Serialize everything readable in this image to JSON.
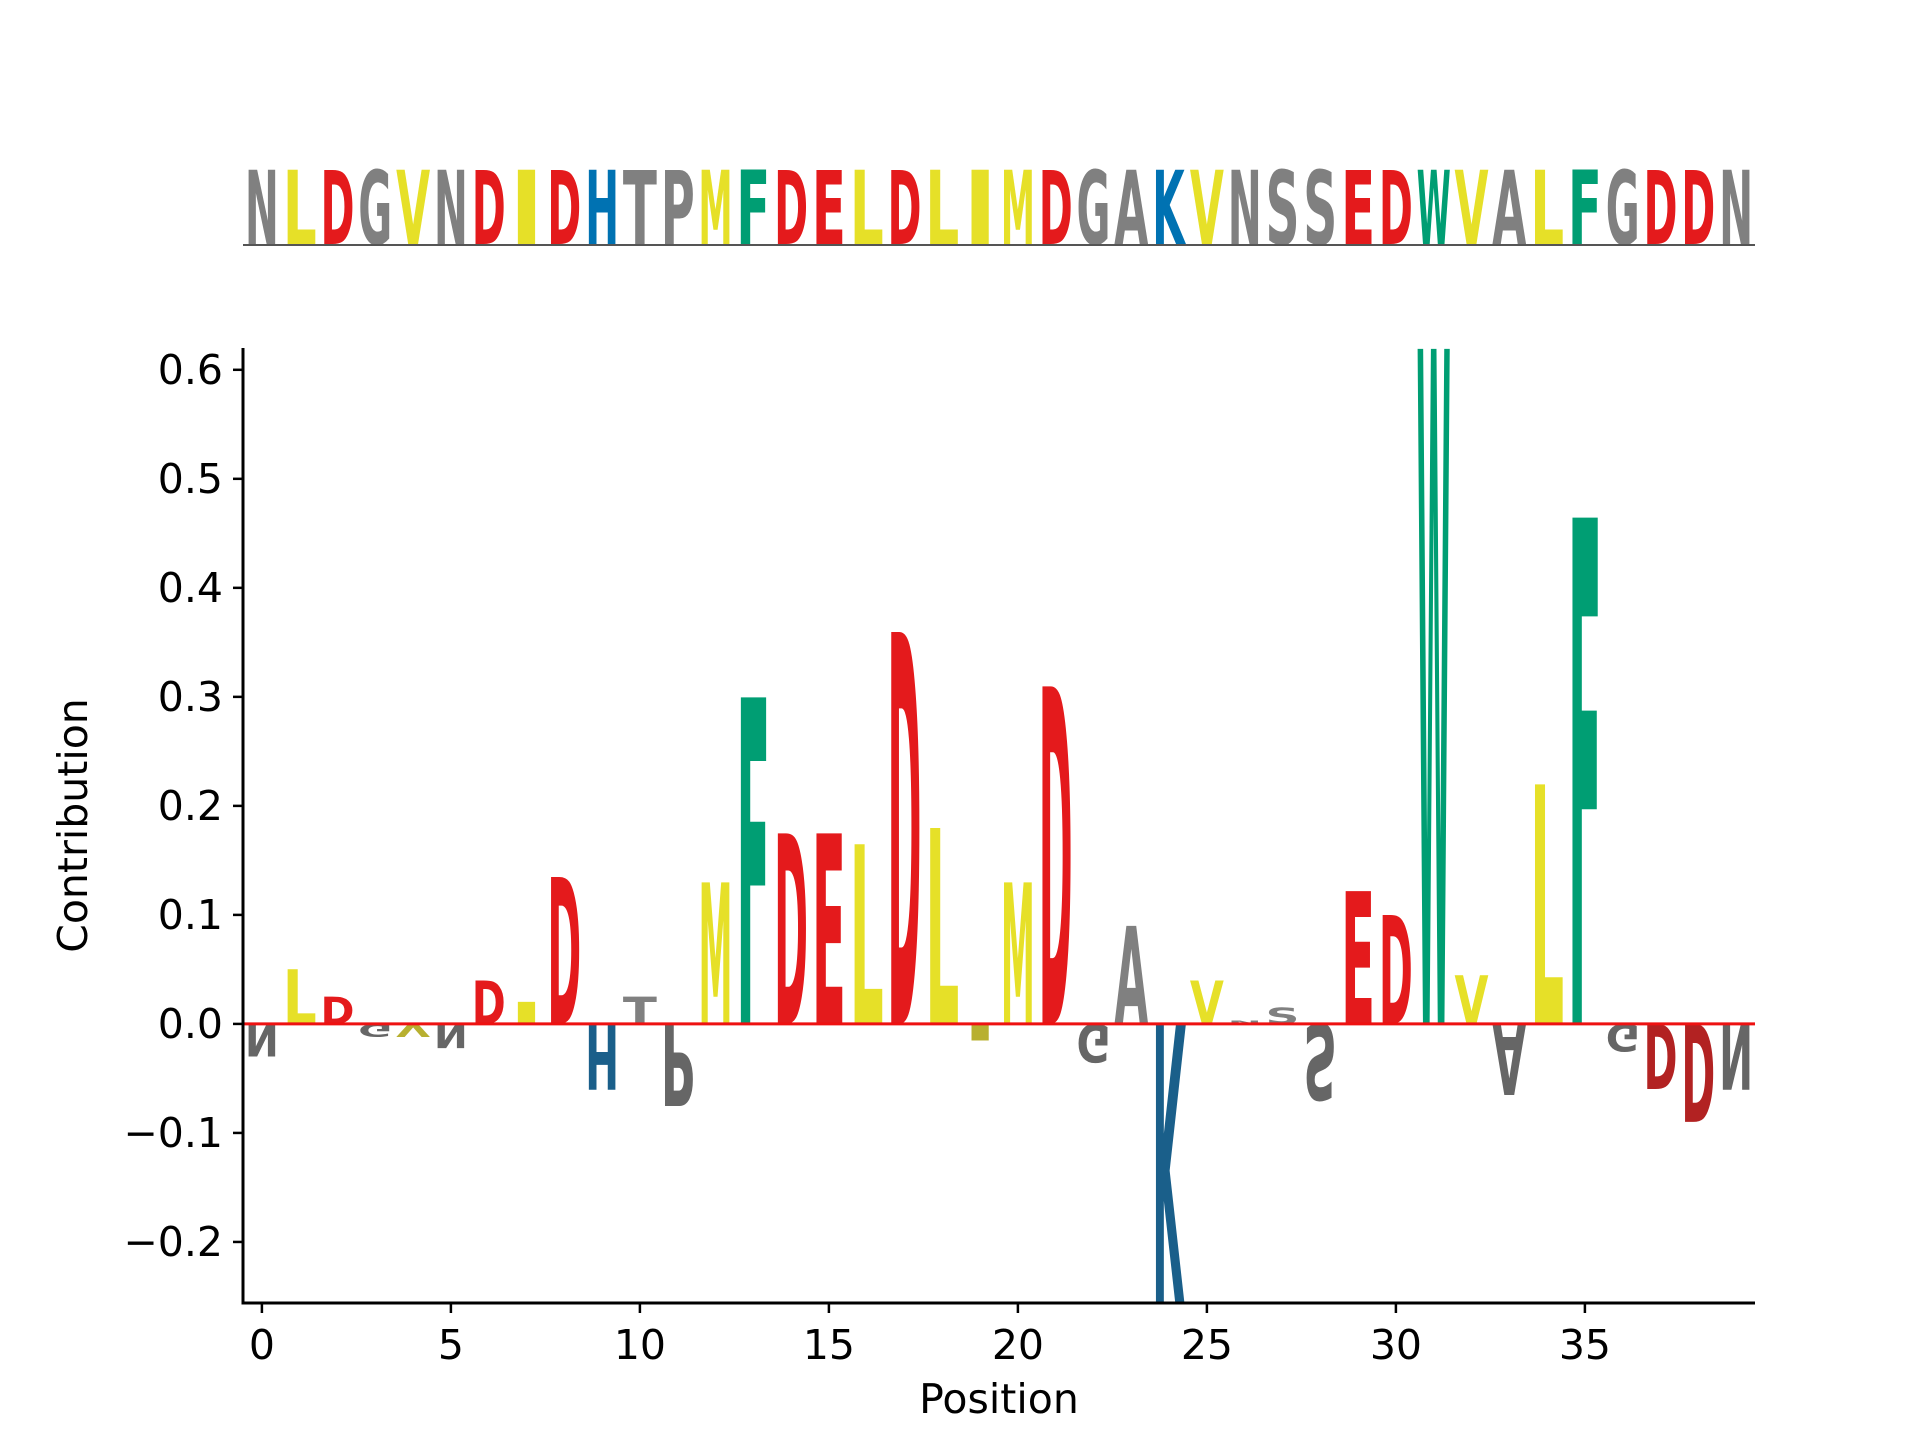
{
  "chart_data": {
    "type": "sequence-logo",
    "sequence": "NLDGVNDIDHTPMFDELDLIMDGAKVNSSEDWVALFGDDN",
    "xlabel": "Position",
    "ylabel": "Contribution",
    "xlim": [
      -0.5,
      39.5
    ],
    "ylim": [
      -0.256,
      0.62
    ],
    "xticks": [
      0,
      5,
      10,
      15,
      20,
      25,
      30,
      35
    ],
    "xtick_labels": [
      "0",
      "5",
      "10",
      "15",
      "20",
      "25",
      "30",
      "35"
    ],
    "yticks": [
      -0.2,
      -0.1,
      0.0,
      0.1,
      0.2,
      0.3,
      0.4,
      0.5,
      0.6
    ],
    "ytick_labels": [
      "−0.2",
      "−0.1",
      "0.0",
      "0.1",
      "0.2",
      "0.3",
      "0.4",
      "0.5",
      "0.6"
    ],
    "contributions": [
      -0.03,
      0.05,
      0.025,
      -0.012,
      -0.012,
      -0.022,
      0.04,
      0.02,
      0.135,
      -0.06,
      0.025,
      -0.075,
      0.13,
      0.3,
      0.175,
      0.175,
      0.165,
      0.36,
      0.18,
      -0.015,
      0.13,
      0.31,
      -0.035,
      0.09,
      -0.256,
      0.04,
      0.003,
      0.015,
      -0.07,
      0.122,
      0.1,
      0.62,
      0.045,
      -0.065,
      0.22,
      0.465,
      -0.025,
      -0.06,
      -0.09,
      -0.06
    ],
    "zero_line_color": "#ee1111",
    "residue_colors": {
      "D": "#e41a1c",
      "E": "#e41a1c",
      "L": "#e6e028",
      "I": "#e6e028",
      "V": "#e6e028",
      "M": "#e6e028",
      "F": "#009e73",
      "W": "#009e73",
      "H": "#0072b2",
      "K": "#0072b2",
      "N": "#808080",
      "G": "#808080",
      "T": "#808080",
      "P": "#808080",
      "A": "#808080",
      "S": "#808080"
    },
    "negative_colors": {
      "D": "#b22222",
      "E": "#b22222",
      "L": "#b8b030",
      "I": "#b8b030",
      "V": "#b8b030",
      "M": "#b8b030",
      "F": "#108060",
      "W": "#108060",
      "H": "#1a5f8a",
      "K": "#1a5f8a",
      "N": "#666666",
      "G": "#666666",
      "T": "#666666",
      "P": "#666666",
      "A": "#666666",
      "S": "#666666"
    }
  }
}
